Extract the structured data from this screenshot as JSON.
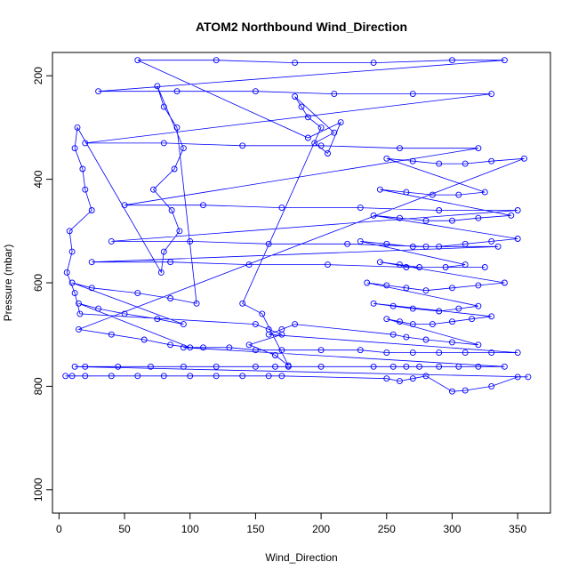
{
  "chart_data": {
    "type": "scatter",
    "title": "ATOM2 Northbound Wind_Direction",
    "xlabel": "Wind_Direction",
    "ylabel": "Pressure (mbar)",
    "xlim": [
      -5,
      375
    ],
    "ylim": [
      1045,
      155
    ],
    "y_reversed": true,
    "x_ticks": [
      0,
      50,
      100,
      150,
      200,
      250,
      300,
      350
    ],
    "y_ticks": [
      200,
      400,
      600,
      800,
      1000
    ],
    "grid": false,
    "legend": "none",
    "marker": "open-circle",
    "connect_points": true,
    "color": "#0000ff",
    "series": [
      {
        "x": [
          5,
          10,
          20,
          40,
          60,
          80,
          100,
          120,
          140,
          160,
          170,
          250,
          260,
          270,
          280,
          300,
          310,
          330,
          350,
          358,
          12,
          20,
          45,
          70,
          95,
          120,
          150,
          165,
          175,
          200,
          240,
          255,
          265,
          275,
          290,
          305,
          320,
          340,
          95,
          110,
          130,
          150,
          170,
          200,
          230,
          250,
          270,
          290,
          310,
          330,
          350,
          160,
          170,
          180,
          255,
          265,
          280,
          300,
          320,
          250,
          260,
          270,
          285,
          300,
          315,
          330,
          240,
          255,
          270,
          290,
          305,
          320,
          235,
          250,
          265,
          280,
          300,
          320,
          340,
          245,
          260,
          275,
          295,
          310,
          230,
          250,
          270,
          290,
          310,
          330,
          350,
          240,
          260,
          280,
          300,
          320,
          345,
          245,
          265,
          285,
          305,
          325,
          250,
          270,
          290,
          310,
          330,
          355,
          15,
          40,
          65,
          85,
          100,
          15,
          30,
          50,
          75,
          95,
          10,
          25,
          60,
          85,
          105,
          90,
          80,
          75,
          95,
          88,
          72,
          86,
          92,
          80,
          78,
          14,
          12,
          18,
          20,
          25,
          8,
          10,
          6,
          12,
          16,
          150,
          160,
          170,
          145,
          165,
          175,
          155,
          140,
          200,
          190,
          185,
          180,
          210,
          195,
          205,
          215,
          190,
          60,
          120,
          180,
          240,
          300,
          340,
          30,
          90,
          150,
          210,
          270,
          330,
          20,
          80,
          140,
          200,
          260,
          320,
          50,
          110,
          170,
          230,
          290,
          350,
          40,
          100,
          160,
          220,
          280,
          335,
          25,
          85,
          145,
          205,
          265,
          325
        ],
        "y": [
          780,
          780,
          780,
          780,
          780,
          780,
          780,
          780,
          780,
          780,
          780,
          785,
          790,
          785,
          780,
          810,
          808,
          800,
          782,
          782,
          762,
          762,
          762,
          762,
          762,
          762,
          762,
          762,
          762,
          762,
          762,
          762,
          762,
          762,
          762,
          762,
          762,
          762,
          725,
          725,
          725,
          730,
          730,
          730,
          730,
          735,
          735,
          735,
          735,
          735,
          735,
          700,
          690,
          680,
          700,
          705,
          710,
          715,
          720,
          670,
          675,
          680,
          680,
          675,
          670,
          665,
          640,
          645,
          650,
          655,
          650,
          645,
          600,
          605,
          610,
          615,
          610,
          605,
          600,
          560,
          565,
          570,
          570,
          565,
          520,
          525,
          530,
          530,
          525,
          520,
          515,
          470,
          475,
          480,
          480,
          475,
          470,
          420,
          425,
          430,
          430,
          425,
          360,
          365,
          370,
          370,
          365,
          360,
          690,
          700,
          710,
          720,
          725,
          640,
          650,
          660,
          670,
          680,
          600,
          610,
          620,
          630,
          640,
          300,
          260,
          220,
          340,
          380,
          420,
          460,
          500,
          540,
          580,
          300,
          340,
          380,
          420,
          460,
          500,
          540,
          580,
          620,
          660,
          680,
          690,
          700,
          720,
          740,
          760,
          660,
          640,
          300,
          280,
          260,
          240,
          310,
          330,
          350,
          290,
          320,
          170,
          170,
          175,
          175,
          170,
          170,
          230,
          230,
          230,
          235,
          235,
          235,
          330,
          330,
          335,
          335,
          340,
          340,
          450,
          450,
          455,
          455,
          460,
          460,
          520,
          520,
          525,
          525,
          530,
          530,
          560,
          560,
          565,
          565,
          570,
          570
        ]
      }
    ]
  }
}
